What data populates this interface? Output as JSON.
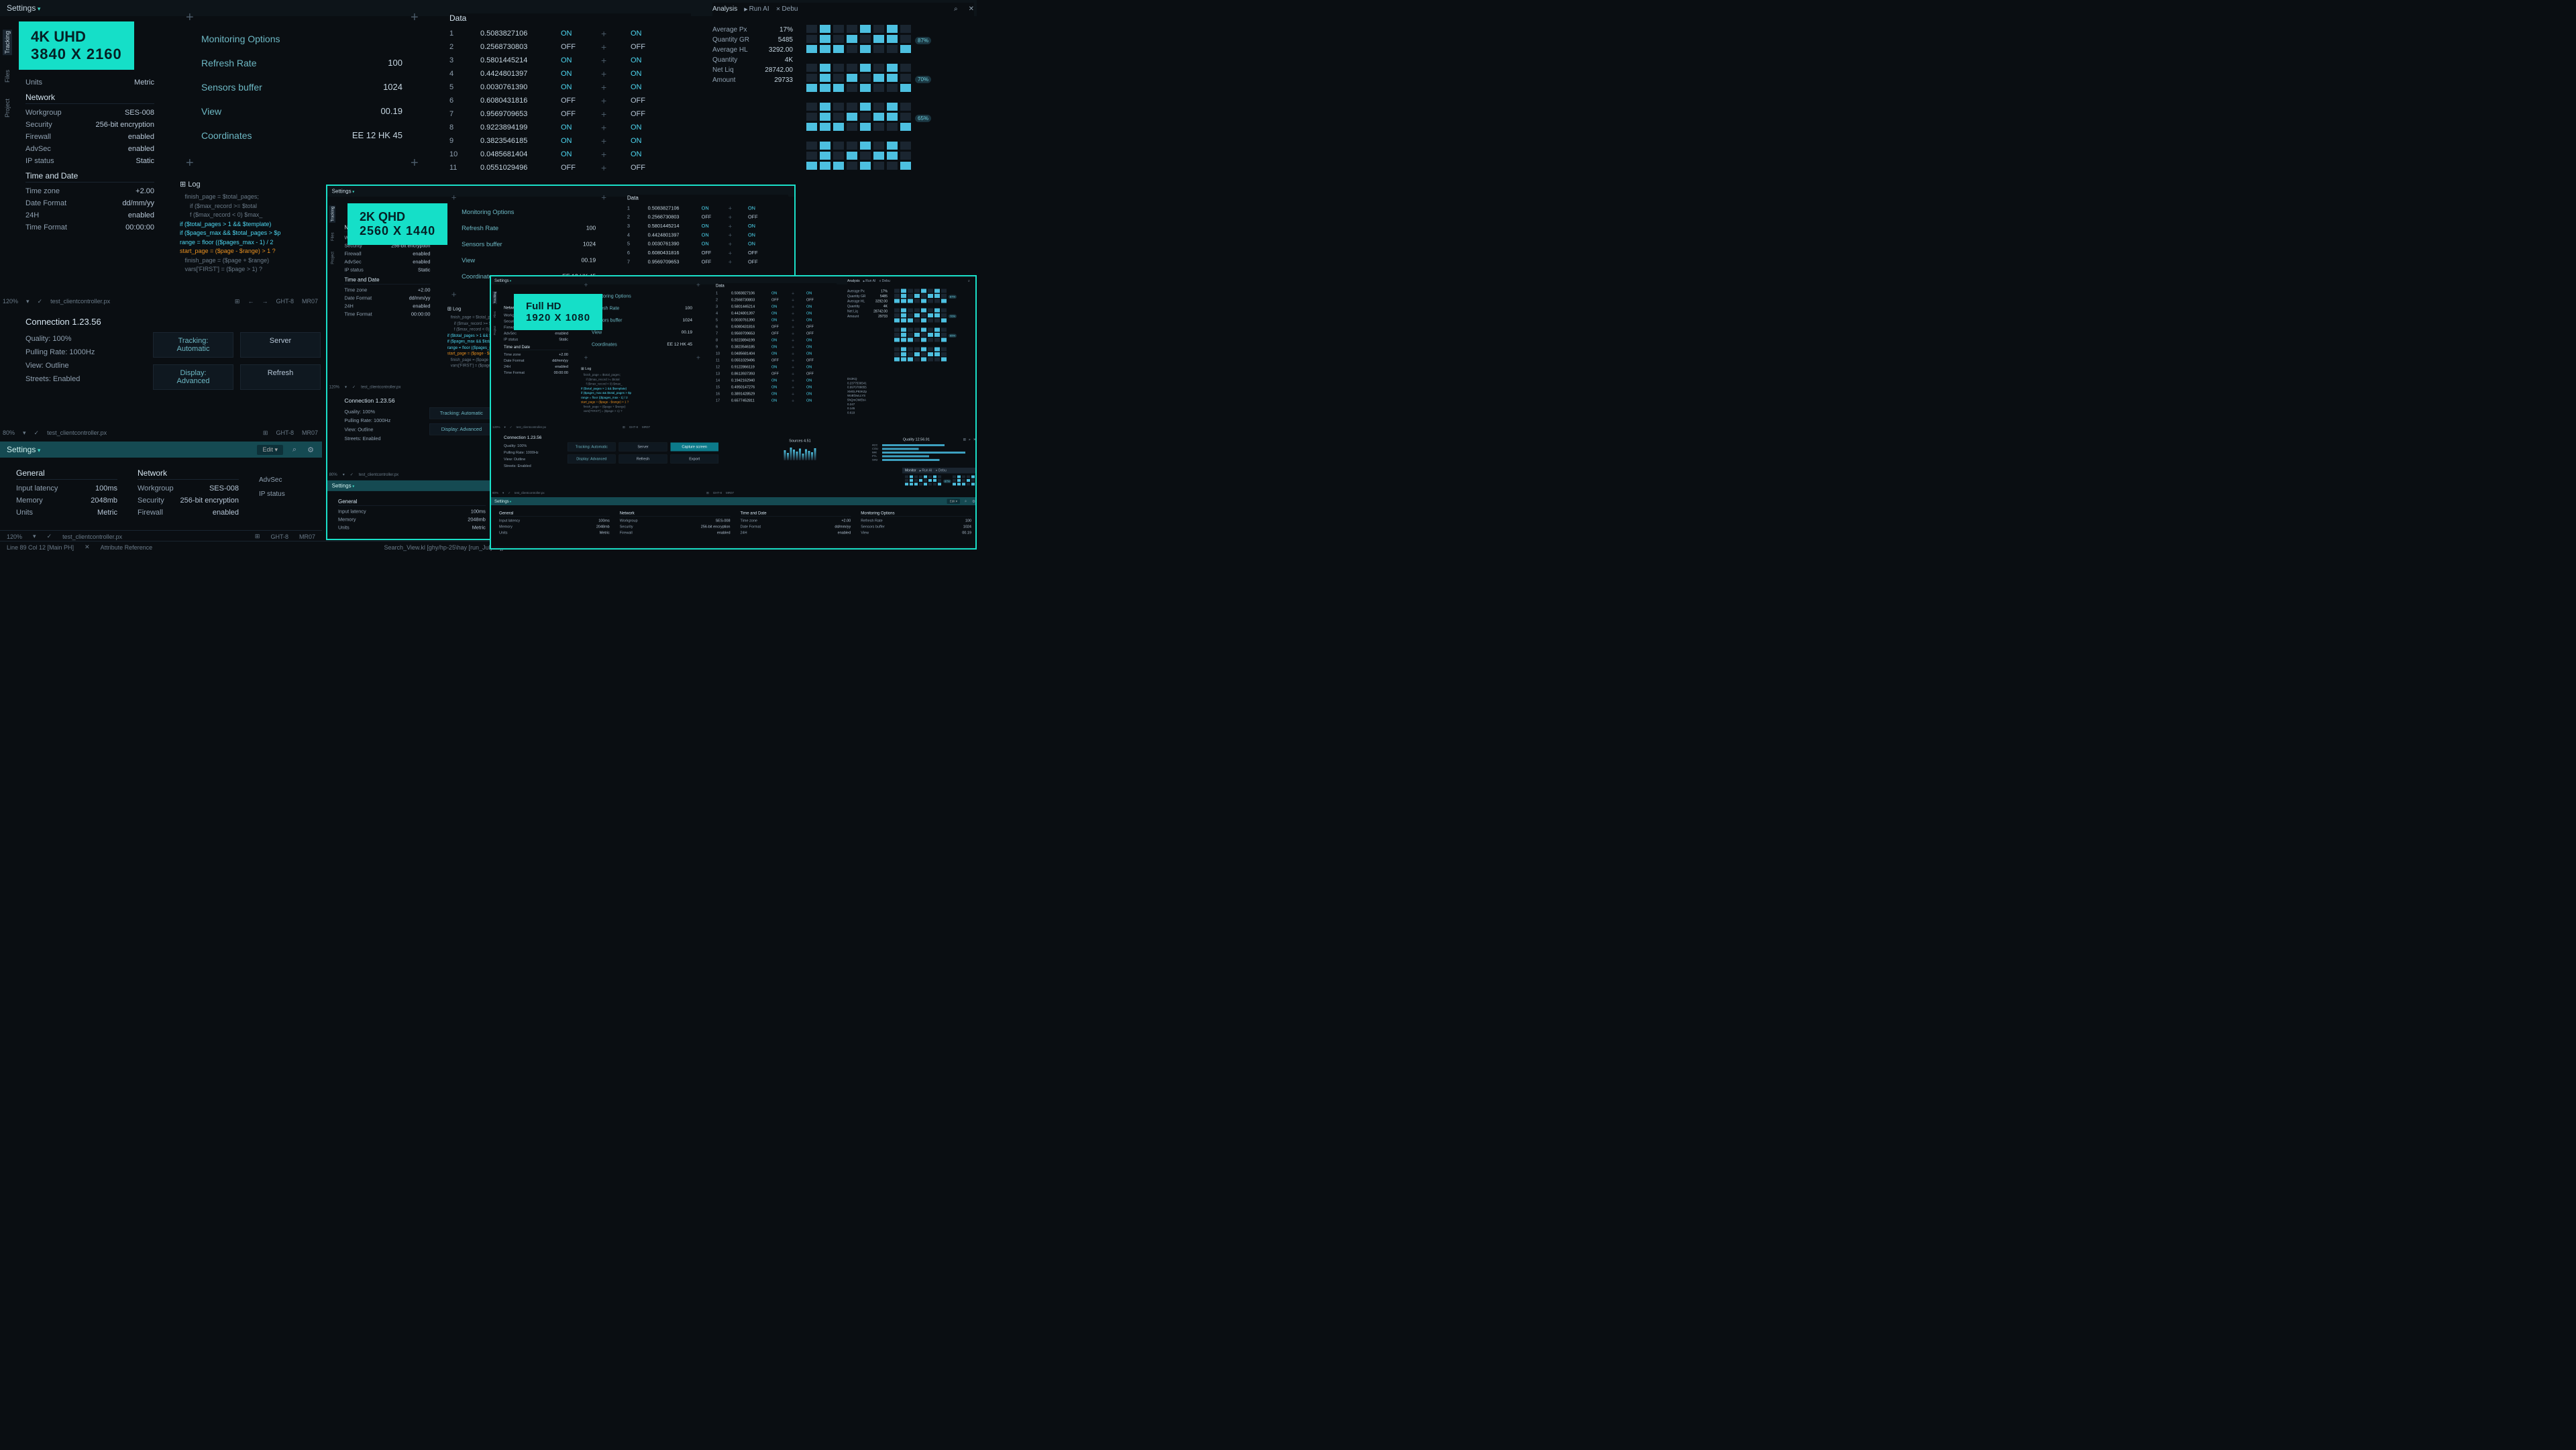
{
  "colors": {
    "accent": "#15dfc8",
    "on": "#4dd6f0",
    "bg": "#0a0e12",
    "text": "#8fa0b0",
    "text2": "#c5d5e0"
  },
  "badges": {
    "r4k": {
      "l1": "4K UHD",
      "l2": "3840 X 2160"
    },
    "r2k": {
      "l1": "2K QHD",
      "l2": "2560 X 1440"
    },
    "rfhd": {
      "l1": "Full HD",
      "l2": "1920 X 1080"
    }
  },
  "topbar": {
    "title": "Settings",
    "edit": "Edit ▾"
  },
  "sidetabs": [
    "Tracking",
    "Files",
    "Project"
  ],
  "settings": {
    "general": {
      "hdr": "General",
      "rows": [
        [
          "Input latency",
          "100ms"
        ],
        [
          "Memory",
          "2048mb"
        ],
        [
          "Units",
          "Metric"
        ]
      ]
    },
    "network": {
      "hdr": "Network",
      "rows": [
        [
          "Workgroup",
          "SES-008"
        ],
        [
          "Security",
          "256-bit encryption"
        ],
        [
          "Firewall",
          "enabled"
        ],
        [
          "AdvSec",
          "enabled"
        ],
        [
          "IP status",
          "Static"
        ]
      ]
    },
    "timedate": {
      "hdr": "Time and Date",
      "rows": [
        [
          "Time zone",
          "+2.00"
        ],
        [
          "Date Format",
          "dd/mm/yy"
        ],
        [
          "24H",
          "enabled"
        ],
        [
          "Time Format",
          "00:00:00"
        ]
      ]
    }
  },
  "monitoring": {
    "rows": [
      [
        "Monitoring Options",
        ""
      ],
      [
        "Refresh Rate",
        "100"
      ],
      [
        "Sensors buffer",
        "1024"
      ],
      [
        "View",
        "00.19"
      ],
      [
        "Coordinates",
        "EE 12 HK 45"
      ]
    ]
  },
  "data": {
    "hdr": "Data",
    "rows": [
      [
        1,
        "0.5083827106",
        "ON",
        "ON"
      ],
      [
        2,
        "0.2568730803",
        "OFF",
        "OFF"
      ],
      [
        3,
        "0.5801445214",
        "ON",
        "ON"
      ],
      [
        4,
        "0.4424801397",
        "ON",
        "ON"
      ],
      [
        5,
        "0.0030761390",
        "ON",
        "ON"
      ],
      [
        6,
        "0.6080431816",
        "OFF",
        "OFF"
      ],
      [
        7,
        "0.9569709653",
        "OFF",
        "OFF"
      ],
      [
        8,
        "0.9223894199",
        "ON",
        "ON"
      ],
      [
        9,
        "0.3823546185",
        "ON",
        "ON"
      ],
      [
        10,
        "0.0485681404",
        "ON",
        "ON"
      ],
      [
        11,
        "0.0551029496",
        "OFF",
        "OFF"
      ],
      [
        12,
        "0.9122866119",
        "ON",
        "ON"
      ],
      [
        13,
        "0.8613937393",
        "OFF",
        "OFF"
      ],
      [
        14,
        "0.1942162940",
        "ON",
        "ON"
      ],
      [
        15,
        "0.4950147276",
        "ON",
        "ON"
      ],
      [
        16,
        "0.3891428529",
        "ON",
        "ON"
      ],
      [
        17,
        "0.6577452811",
        "ON",
        "ON"
      ]
    ]
  },
  "analysis": {
    "title": "Analysis",
    "run": "Run AI",
    "debug": "Debu"
  },
  "stats": [
    [
      "Average Px",
      "17%"
    ],
    [
      "Quantity GR",
      "5485"
    ],
    [
      "Average HL",
      "3292.00"
    ],
    [
      "Quantity",
      "4K"
    ],
    [
      "Net Liq",
      "28742.00"
    ],
    [
      "Amount",
      "29733"
    ]
  ],
  "blockgrid": {
    "cols": 8,
    "rows": 3,
    "pattern": [
      [
        0,
        2
      ],
      [
        1,
        0
      ],
      [
        1,
        1
      ],
      [
        1,
        2
      ],
      [
        2,
        2
      ],
      [
        3,
        1
      ],
      [
        4,
        0
      ],
      [
        4,
        2
      ],
      [
        5,
        1
      ],
      [
        6,
        0
      ],
      [
        6,
        1
      ],
      [
        7,
        2
      ]
    ]
  },
  "blocklabels": [
    "87%",
    "70%",
    "65%"
  ],
  "codes": [
    "Ds3KQ",
    "0.2377536541",
    "0.9970788855",
    "XMGLP93KZp",
    "WoBfJwLLYS",
    "",
    "5hQmOMEbA",
    "0.247",
    "0.145",
    "0.619"
  ],
  "log": {
    "hdr": "Log",
    "lines": [
      "   finish_page = $total_pages;",
      "      if ($max_record >= $total",
      "      f ($max_record < 0) $max_",
      "",
      "if ($total_pages > 1 && $template)",
      "if ($pages_max && $total_pages > $p",
      "range = floor (($pages_max - 1) / 2",
      "start_page = ($page - $range) > 1 ?",
      "   finish_page = ($page + $range)",
      "   vars['FIRST'] = ($page > 1) ? "
    ]
  },
  "connection": {
    "hdr": "Connection 1.23.56",
    "rows": [
      "Quality: 100%",
      "Pulling Rate: 1000Hz",
      "View: Outline",
      "Streets: Enabled"
    ],
    "btns": [
      "Tracking: Automatic",
      "Server",
      "Capture screen",
      "Display: Advanced",
      "Refresh",
      "Export"
    ]
  },
  "status": {
    "zoom": "120%",
    "zoom2": "80%",
    "file": "test_clientcontroller.px",
    "ght": "GHT-8",
    "mr": "MR07",
    "line": "Line 89 Col 12 [Main PH]",
    "attr": "Attribute Reference",
    "search": "Search_View.kl [ghy/hp-25\\hay [run_July23]]"
  },
  "status_fhd": {
    "line": "Line 89 Col 12 [Debug Main PH]",
    "attr": "Attribute Reference"
  },
  "sources": {
    "hdr": "Sources 4.51",
    "bars": [
      30,
      22,
      38,
      32,
      26,
      35,
      20,
      33,
      28,
      24,
      36
    ]
  },
  "quality": {
    "hdr": "Quality 12.56.91",
    "rows": [
      [
        "ACC",
        60
      ],
      [
        "COU",
        35
      ],
      [
        "IMK",
        80
      ],
      [
        "PTL",
        45
      ],
      [
        "SHU",
        55
      ]
    ]
  }
}
